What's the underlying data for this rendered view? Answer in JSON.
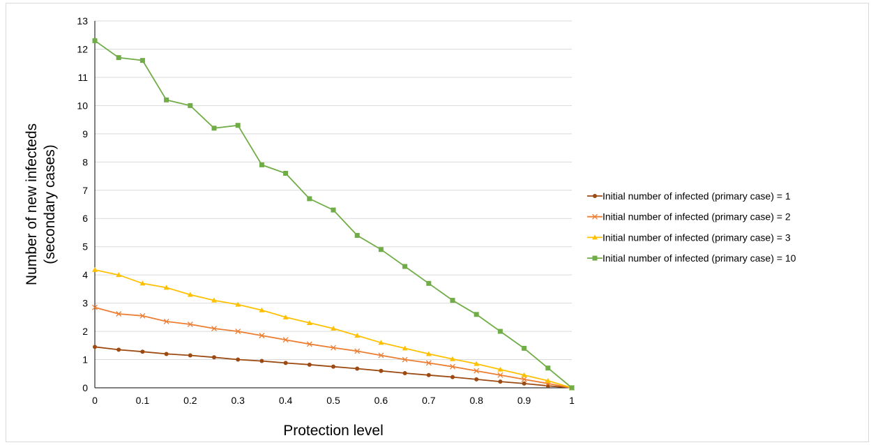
{
  "chart_data": {
    "type": "line",
    "xlabel": "Protection level",
    "ylabel": "Number of new infecteds (secondary cases)",
    "xlim": [
      0,
      1
    ],
    "ylim": [
      0,
      13
    ],
    "xticks": [
      "0",
      "0.1",
      "0.2",
      "0.3",
      "0.4",
      "0.5",
      "0.6",
      "0.7",
      "0.8",
      "0.9",
      "1"
    ],
    "yticks": [
      "0",
      "1",
      "2",
      "3",
      "4",
      "5",
      "6",
      "7",
      "8",
      "9",
      "10",
      "11",
      "12",
      "13"
    ],
    "grid": "horizontal",
    "legend_position": "right",
    "x": [
      0,
      0.05,
      0.1,
      0.15,
      0.2,
      0.25,
      0.3,
      0.35,
      0.4,
      0.45,
      0.5,
      0.55,
      0.6,
      0.65,
      0.7,
      0.75,
      0.8,
      0.85,
      0.9,
      0.95,
      1
    ],
    "series": [
      {
        "name": "Initial number of infected (primary case) = 1",
        "color": "#9c4a12",
        "marker": "circle",
        "values": [
          1.45,
          1.35,
          1.28,
          1.2,
          1.15,
          1.08,
          1.0,
          0.95,
          0.88,
          0.82,
          0.75,
          0.68,
          0.6,
          0.52,
          0.45,
          0.38,
          0.3,
          0.22,
          0.15,
          0.07,
          0
        ]
      },
      {
        "name": "Initial number of infected (primary case) = 2",
        "color": "#ed7d31",
        "marker": "x",
        "values": [
          2.85,
          2.62,
          2.55,
          2.35,
          2.25,
          2.1,
          2.0,
          1.85,
          1.7,
          1.55,
          1.42,
          1.3,
          1.15,
          1.0,
          0.88,
          0.75,
          0.6,
          0.45,
          0.3,
          0.15,
          0
        ]
      },
      {
        "name": "Initial number of infected (primary case) = 3",
        "color": "#ffc000",
        "marker": "triangle",
        "values": [
          4.18,
          4.0,
          3.7,
          3.55,
          3.3,
          3.1,
          2.95,
          2.75,
          2.5,
          2.3,
          2.1,
          1.85,
          1.6,
          1.4,
          1.2,
          1.02,
          0.85,
          0.65,
          0.45,
          0.25,
          0
        ]
      },
      {
        "name": "Initial number of infected (primary case) = 10",
        "color": "#70ad47",
        "marker": "square",
        "values": [
          12.3,
          11.7,
          11.6,
          10.2,
          10.0,
          9.2,
          9.3,
          7.9,
          7.6,
          6.7,
          6.3,
          5.4,
          4.9,
          4.3,
          3.7,
          3.1,
          2.6,
          2.0,
          1.4,
          0.7,
          0
        ]
      }
    ]
  }
}
